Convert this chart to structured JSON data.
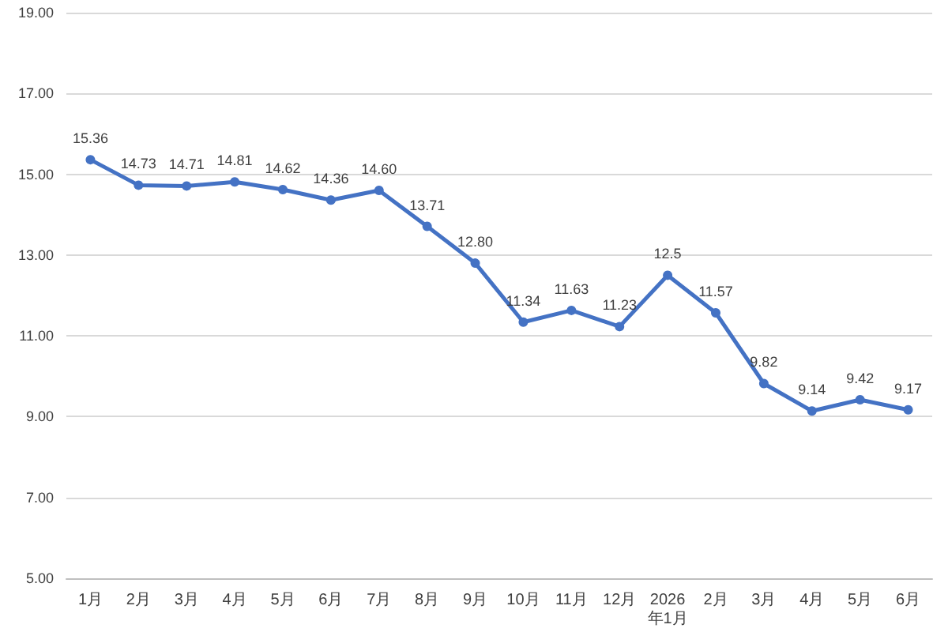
{
  "chart_data": {
    "type": "line",
    "categories": [
      "1月",
      "2月",
      "3月",
      "4月",
      "5月",
      "6月",
      "7月",
      "8月",
      "9月",
      "10月",
      "11月",
      "12月",
      "2026\n年1月",
      "2月",
      "3月",
      "4月",
      "5月",
      "6月"
    ],
    "series": [
      {
        "color": "#4472c4",
        "values": [
          15.36,
          14.73,
          14.71,
          14.81,
          14.62,
          14.36,
          14.6,
          13.71,
          12.8,
          11.34,
          11.63,
          11.23,
          12.5,
          11.57,
          9.82,
          9.14,
          9.42,
          9.17
        ],
        "value_labels": [
          "15.36",
          "14.73",
          "14.71",
          "14.81",
          "14.62",
          "14.36",
          "14.60",
          "13.71",
          "12.80",
          "11.34",
          "11.63",
          "11.23",
          "12.5",
          "11.57",
          "9.82",
          "9.14",
          "9.42",
          "9.17"
        ]
      }
    ],
    "ylim": [
      5,
      19
    ],
    "yticks": [
      {
        "value": 5,
        "label": "5.00"
      },
      {
        "value": 7,
        "label": "7.00"
      },
      {
        "value": 9,
        "label": "9.00"
      },
      {
        "value": 11,
        "label": "11.00"
      },
      {
        "value": 13,
        "label": "13.00"
      },
      {
        "value": 15,
        "label": "15.00"
      },
      {
        "value": 17,
        "label": "17.00"
      },
      {
        "value": 19,
        "label": "19.00"
      }
    ],
    "grid": "y",
    "marker": "circle",
    "line_style": "solid"
  }
}
